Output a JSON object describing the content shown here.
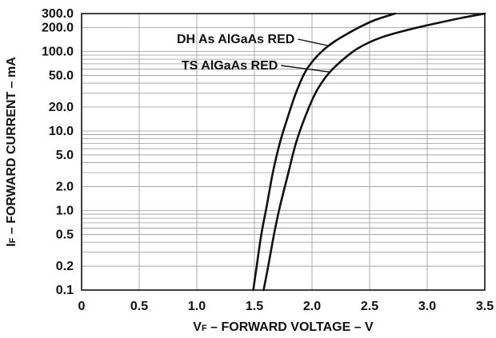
{
  "chart_data": {
    "type": "line",
    "xlabel": {
      "main": "V",
      "sub": "F",
      "rest": " – FORWARD VOLTAGE – V"
    },
    "ylabel": {
      "main": "I",
      "sub": "F",
      "rest": " – FORWARD CURRENT – mA"
    },
    "xlim": [
      0,
      3.5
    ],
    "ylim": [
      0.1,
      300
    ],
    "yscale": "log",
    "grid": true,
    "xticks": [
      0,
      0.5,
      1.0,
      1.5,
      2.0,
      2.5,
      3.0,
      3.5
    ],
    "xtick_labels": [
      "0",
      "0.5",
      "1.0",
      "1.5",
      "2.0",
      "2.5",
      "3.0",
      "3.5"
    ],
    "yticks": [
      0.1,
      0.2,
      0.5,
      1.0,
      2.0,
      5.0,
      10.0,
      20.0,
      50.0,
      100.0,
      200.0,
      300.0
    ],
    "ytick_labels": [
      "0.1",
      "0.2",
      "0.5",
      "1.0",
      "2.0",
      "5.0",
      "10.0",
      "20.0",
      "50.0",
      "100.0",
      "200.0",
      "300.0"
    ],
    "series": [
      {
        "name": "DH As AlGaAs RED",
        "x": [
          1.49,
          1.52,
          1.56,
          1.61,
          1.66,
          1.72,
          1.79,
          1.86,
          1.94,
          2.02,
          2.1,
          2.2,
          2.3,
          2.42,
          2.55,
          2.72
        ],
        "y": [
          0.1,
          0.2,
          0.5,
          1.2,
          3.0,
          7.0,
          15.0,
          30.0,
          55.0,
          80.0,
          105.0,
          135.0,
          165.0,
          205.0,
          250.0,
          300.0
        ]
      },
      {
        "name": "TS AlGaAs RED",
        "x": [
          1.58,
          1.62,
          1.67,
          1.72,
          1.79,
          1.86,
          1.94,
          2.03,
          2.13,
          2.25,
          2.4,
          2.6,
          2.85,
          3.1,
          3.3,
          3.5
        ],
        "y": [
          0.1,
          0.2,
          0.5,
          1.1,
          2.8,
          7.0,
          15.0,
          30.0,
          50.0,
          75.0,
          110.0,
          150.0,
          190.0,
          230.0,
          265.0,
          300.0
        ]
      }
    ],
    "annotations": [
      {
        "text": "DH As AlGaAs RED",
        "series": 0
      },
      {
        "text": "TS AlGaAs RED",
        "series": 1
      }
    ]
  }
}
